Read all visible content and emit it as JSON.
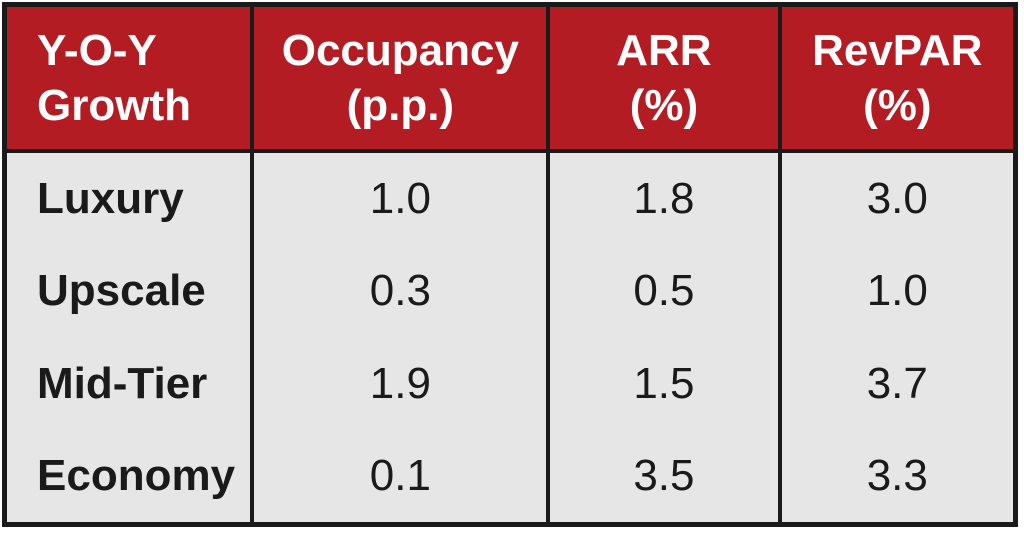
{
  "colors": {
    "header_bg": "#b41c24",
    "header_text": "#ffffff",
    "body_bg": "#e6e6e6",
    "border": "#1a1a1a",
    "body_text": "#1a1a1a",
    "page_bg": "#ffffff"
  },
  "table": {
    "header": {
      "col0": {
        "line1": "Y-O-Y",
        "line2": "Growth"
      },
      "col1": {
        "line1": "Occupancy",
        "line2": "(p.p.)"
      },
      "col2": {
        "line1": "ARR",
        "line2": "(%)"
      },
      "col3": {
        "line1": "RevPAR",
        "line2": "(%)"
      }
    },
    "rows": [
      {
        "label": "Luxury",
        "values": [
          "1.0",
          "1.8",
          "3.0"
        ]
      },
      {
        "label": "Upscale",
        "values": [
          "0.3",
          "0.5",
          "1.0"
        ]
      },
      {
        "label": "Mid-Tier",
        "values": [
          "1.9",
          "1.5",
          "3.7"
        ]
      },
      {
        "label": "Economy",
        "values": [
          "0.1",
          "3.5",
          "3.3"
        ]
      }
    ]
  },
  "chart_data": {
    "type": "table",
    "title": "Y-O-Y Growth",
    "columns": [
      "Y-O-Y Growth",
      "Occupancy (p.p.)",
      "ARR (%)",
      "RevPAR (%)"
    ],
    "categories": [
      "Luxury",
      "Upscale",
      "Mid-Tier",
      "Economy"
    ],
    "series": [
      {
        "name": "Occupancy (p.p.)",
        "values": [
          1.0,
          0.3,
          1.9,
          0.1
        ]
      },
      {
        "name": "ARR (%)",
        "values": [
          1.8,
          0.5,
          1.5,
          3.5
        ]
      },
      {
        "name": "RevPAR (%)",
        "values": [
          3.0,
          1.0,
          3.7,
          3.3
        ]
      }
    ]
  }
}
